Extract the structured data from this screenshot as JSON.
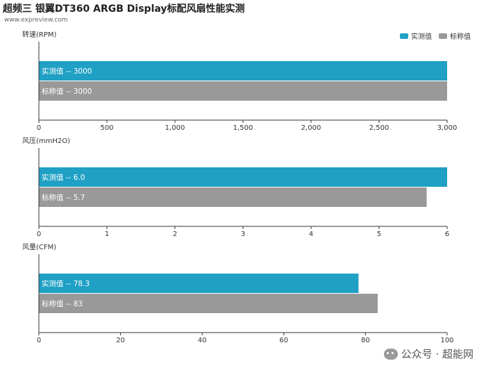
{
  "header": {
    "title": "超频三 银翼DT360 ARGB Display标配风扇性能实测",
    "source": "www.expreview.com"
  },
  "legend": [
    {
      "label": "实测值",
      "color": "#1fa0c4"
    },
    {
      "label": "标称值",
      "color": "#999999"
    }
  ],
  "watermark": "公众号 · 超能网",
  "chart_data": [
    {
      "type": "bar",
      "orientation": "horizontal",
      "ylabel": "转速(RPM)",
      "xlim": [
        0,
        3000
      ],
      "xticks": [
        0,
        500,
        1000,
        1500,
        2000,
        2500,
        3000
      ],
      "xtick_labels": [
        "0",
        "500",
        "1,000",
        "1,500",
        "2,000",
        "2,500",
        "3,000"
      ],
      "series": [
        {
          "name": "实测值",
          "value": 3000,
          "label": "实测值  --  3000",
          "color": "#1fa0c4"
        },
        {
          "name": "标称值",
          "value": 3000,
          "label": "标称值  --  3000",
          "color": "#999999"
        }
      ]
    },
    {
      "type": "bar",
      "orientation": "horizontal",
      "ylabel": "风压(mmH2O)",
      "xlim": [
        0,
        6
      ],
      "xticks": [
        0,
        1,
        2,
        3,
        4,
        5,
        6
      ],
      "xtick_labels": [
        "0",
        "1",
        "2",
        "3",
        "4",
        "5",
        "6"
      ],
      "series": [
        {
          "name": "实测值",
          "value": 6.0,
          "label": "实测值  --  6.0",
          "color": "#1fa0c4"
        },
        {
          "name": "标称值",
          "value": 5.7,
          "label": "标称值  --  5.7",
          "color": "#999999"
        }
      ]
    },
    {
      "type": "bar",
      "orientation": "horizontal",
      "ylabel": "风量(CFM)",
      "xlim": [
        0,
        100
      ],
      "xticks": [
        0,
        20,
        40,
        60,
        80,
        100
      ],
      "xtick_labels": [
        "0",
        "20",
        "40",
        "60",
        "80",
        "100"
      ],
      "series": [
        {
          "name": "实测值",
          "value": 78.3,
          "label": "实测值  --  78.3",
          "color": "#1fa0c4"
        },
        {
          "name": "标称值",
          "value": 83,
          "label": "标称值  --  83",
          "color": "#999999"
        }
      ]
    }
  ]
}
